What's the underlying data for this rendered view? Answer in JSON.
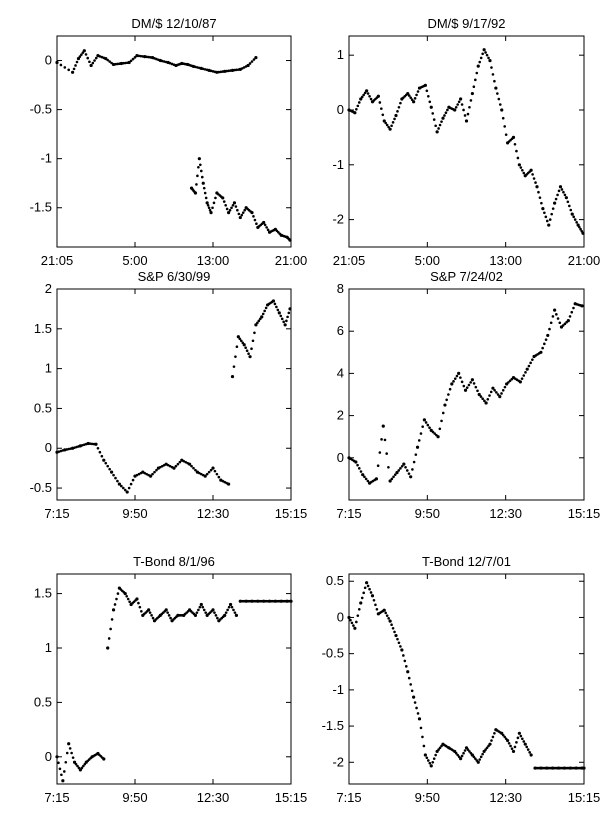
{
  "chart_data": [
    {
      "type": "scatter",
      "title": "DM/$ 12/10/87",
      "xticks": [
        "21:05",
        "5:00",
        "13:00",
        "21:00"
      ],
      "xlim": [
        0,
        24
      ],
      "ylim": [
        -1.9,
        0.25
      ],
      "yticks": [
        0,
        -0.5,
        -1,
        -1.5
      ],
      "ytick_labels": [
        "0",
        "-0.5",
        "-1",
        "-1.5"
      ],
      "segments": [
        {
          "x": [
            0,
            1.6,
            2.2,
            2.8,
            3.5,
            4.2,
            5.0,
            5.8,
            6.6,
            7.4,
            8.2,
            9.0,
            9.8,
            10.6,
            11.4,
            12.2,
            12.8,
            13.4,
            14.0,
            14.8,
            15.6,
            16.4,
            17.2,
            18.0,
            18.8,
            19.6,
            20.4,
            21.0,
            21.6,
            22.2,
            22.8,
            23.4,
            23.8
          ],
          "y": [
            -0.02,
            -0.12,
            0.02,
            0.1,
            -0.05,
            0.05,
            0.02,
            -0.04,
            -0.03,
            -0.02,
            0.05,
            0.04,
            0.03,
            0.0,
            -0.02,
            -0.05,
            -0.03,
            -0.04,
            -0.06,
            -0.08,
            -0.1,
            -0.12,
            -0.11,
            -0.1,
            -0.09,
            -0.05,
            0.03,
            null,
            null,
            null,
            null,
            null,
            null
          ]
        },
        {
          "x": [
            13.8,
            14.2,
            14.6,
            15.0,
            15.4,
            15.8,
            16.4,
            17.0,
            17.6,
            18.2,
            18.8,
            19.4,
            20.0,
            20.6,
            21.2,
            21.8,
            22.4,
            23.0,
            23.6,
            23.9
          ],
          "y": [
            -1.3,
            -1.35,
            -1.0,
            -1.25,
            -1.45,
            -1.55,
            -1.35,
            -1.4,
            -1.55,
            -1.45,
            -1.6,
            -1.5,
            -1.55,
            -1.7,
            -1.65,
            -1.75,
            -1.72,
            -1.78,
            -1.8,
            -1.83
          ]
        }
      ]
    },
    {
      "type": "scatter",
      "title": "DM/$ 9/17/92",
      "xticks": [
        "21:05",
        "5:00",
        "13:00",
        "21:00"
      ],
      "xlim": [
        0,
        24
      ],
      "ylim": [
        -2.5,
        1.35
      ],
      "yticks": [
        1,
        0,
        -1,
        -2
      ],
      "ytick_labels": [
        "1",
        "0",
        "-1",
        "-2"
      ],
      "segments": [
        {
          "x": [
            0,
            0.6,
            1.2,
            1.8,
            2.4,
            3.0,
            3.6,
            4.2,
            4.8,
            5.4,
            6.0,
            6.6,
            7.2,
            7.8,
            8.4,
            9.0,
            9.6,
            10.2,
            10.8,
            11.4,
            12.0,
            12.6,
            13.2,
            13.8,
            14.4,
            15.0,
            15.6,
            16.2,
            16.8,
            17.4,
            18.0,
            18.6,
            19.2,
            19.8,
            20.4,
            21.0,
            21.6,
            22.2,
            22.8,
            23.4,
            23.9
          ],
          "y": [
            0.0,
            -0.05,
            0.2,
            0.35,
            0.15,
            0.25,
            -0.2,
            -0.35,
            -0.1,
            0.2,
            0.3,
            0.15,
            0.4,
            0.45,
            0.05,
            -0.4,
            -0.15,
            0.05,
            0.0,
            0.2,
            -0.2,
            0.3,
            0.8,
            1.1,
            0.9,
            0.4,
            0.0,
            -0.6,
            -0.5,
            -1.0,
            -1.2,
            -1.1,
            -1.4,
            -1.8,
            -2.1,
            -1.7,
            -1.4,
            -1.6,
            -1.9,
            -2.1,
            -2.25
          ]
        }
      ]
    },
    {
      "type": "scatter",
      "title": "S&P 6/30/99",
      "xticks": [
        "7:15",
        "9:50",
        "12:30",
        "15:15"
      ],
      "xlim": [
        0,
        24
      ],
      "ylim": [
        -0.65,
        2.0
      ],
      "yticks": [
        2,
        1.5,
        1,
        0.5,
        0,
        -0.5
      ],
      "ytick_labels": [
        "2",
        "1.5",
        "1",
        "0.5",
        "0",
        "-0.5"
      ],
      "segments": [
        {
          "x": [
            0,
            0.8,
            1.6,
            2.4,
            3.2,
            4.0,
            4.8,
            5.6,
            6.4,
            7.2,
            8.0,
            8.8,
            9.6,
            10.4,
            11.2,
            12.0,
            12.8,
            13.6,
            14.4,
            15.2,
            16.0,
            16.8,
            17.6
          ],
          "y": [
            -0.05,
            -0.02,
            0.0,
            0.03,
            0.06,
            0.05,
            -0.15,
            -0.3,
            -0.45,
            -0.55,
            -0.35,
            -0.3,
            -0.35,
            -0.25,
            -0.2,
            -0.25,
            -0.15,
            -0.2,
            -0.3,
            -0.35,
            -0.25,
            -0.4,
            -0.45
          ]
        },
        {
          "x": [
            18.0,
            18.6,
            19.2,
            19.8,
            20.4,
            21.0,
            21.6,
            22.2,
            22.8,
            23.4,
            23.9
          ],
          "y": [
            0.9,
            1.4,
            1.3,
            1.15,
            1.55,
            1.65,
            1.8,
            1.85,
            1.7,
            1.55,
            1.75
          ]
        }
      ]
    },
    {
      "type": "scatter",
      "title": "S&P 7/24/02",
      "xticks": [
        "7:15",
        "9:50",
        "12:30",
        "15:15"
      ],
      "xlim": [
        0,
        24
      ],
      "ylim": [
        -2.0,
        8.0
      ],
      "yticks": [
        8,
        6,
        4,
        2,
        0
      ],
      "ytick_labels": [
        "8",
        "6",
        "4",
        "2",
        "0"
      ],
      "segments": [
        {
          "x": [
            0,
            0.7,
            1.4,
            2.1,
            2.8,
            3.5,
            4.2,
            4.9,
            5.6,
            6.3,
            7.0,
            7.7,
            8.4,
            9.1,
            9.8,
            10.5,
            11.2,
            11.9,
            12.6,
            13.3,
            14.0,
            14.7,
            15.4,
            16.1,
            16.8,
            17.5,
            18.2,
            18.9,
            19.6,
            20.3,
            21.0,
            21.7,
            22.4,
            23.1,
            23.8
          ],
          "y": [
            0.0,
            -0.2,
            -0.8,
            -1.2,
            -1.0,
            1.5,
            -1.1,
            -0.7,
            -0.3,
            -0.9,
            0.5,
            1.8,
            1.3,
            1.0,
            2.5,
            3.5,
            4.0,
            3.2,
            3.7,
            3.0,
            2.6,
            3.3,
            2.9,
            3.5,
            3.8,
            3.6,
            4.2,
            4.8,
            5.0,
            5.8,
            7.0,
            6.2,
            6.5,
            7.3,
            7.2
          ]
        }
      ]
    },
    {
      "type": "scatter",
      "title": "T-Bond 8/1/96",
      "xticks": [
        "7:15",
        "9:50",
        "12:30",
        "15:15"
      ],
      "xlim": [
        0,
        24
      ],
      "ylim": [
        -0.25,
        1.68
      ],
      "yticks": [
        1.5,
        1,
        0.5,
        0
      ],
      "ytick_labels": [
        "1.5",
        "1",
        "0.5",
        "0"
      ],
      "segments": [
        {
          "x": [
            0,
            0.6,
            1.2,
            1.8,
            2.4,
            3.0,
            3.6,
            4.2,
            4.8
          ],
          "y": [
            0.0,
            -0.22,
            0.12,
            -0.05,
            -0.12,
            -0.05,
            0.0,
            0.03,
            -0.02
          ]
        },
        {
          "x": [
            5.2,
            5.8,
            6.4,
            7.0,
            7.6,
            8.2,
            8.8,
            9.4,
            10.0,
            10.6,
            11.2,
            11.8,
            12.4,
            13.0,
            13.6,
            14.2,
            14.8,
            15.4,
            16.0,
            16.6,
            17.2,
            17.8,
            18.4
          ],
          "y": [
            1.0,
            1.35,
            1.55,
            1.5,
            1.4,
            1.45,
            1.3,
            1.35,
            1.25,
            1.3,
            1.35,
            1.25,
            1.3,
            1.3,
            1.35,
            1.3,
            1.4,
            1.3,
            1.35,
            1.25,
            1.3,
            1.4,
            1.3
          ]
        },
        {
          "x": [
            18.8,
            19.4,
            20.0,
            20.6,
            21.2,
            21.8,
            22.4,
            23.0,
            23.6,
            24.0
          ],
          "y": [
            1.43,
            1.43,
            1.43,
            1.43,
            1.43,
            1.43,
            1.43,
            1.43,
            1.43,
            1.43
          ]
        }
      ]
    },
    {
      "type": "scatter",
      "title": "T-Bond 12/7/01",
      "xticks": [
        "7:15",
        "9:50",
        "12:30",
        "15:15"
      ],
      "xlim": [
        0,
        24
      ],
      "ylim": [
        -2.3,
        0.6
      ],
      "yticks": [
        0.5,
        0,
        -0.5,
        -1,
        -1.5,
        -2
      ],
      "ytick_labels": [
        "0.5",
        "0",
        "-0.5",
        "-1",
        "-1.5",
        "-2"
      ],
      "segments": [
        {
          "x": [
            0,
            0.6,
            1.2,
            1.8,
            2.4,
            3.0,
            3.6,
            4.2,
            4.8,
            5.4,
            6.0,
            6.6,
            7.2,
            7.8,
            8.4,
            9.0,
            9.6,
            10.2,
            10.8,
            11.4,
            12.0,
            12.6,
            13.2,
            13.8,
            14.4,
            15.0,
            15.6,
            16.2,
            16.8,
            17.4,
            18.0,
            18.6
          ],
          "y": [
            0.0,
            -0.15,
            0.2,
            0.48,
            0.3,
            0.05,
            0.1,
            -0.05,
            -0.25,
            -0.45,
            -0.75,
            -1.1,
            -1.4,
            -1.9,
            -2.05,
            -1.85,
            -1.75,
            -1.8,
            -1.85,
            -1.95,
            -1.8,
            -1.9,
            -2.0,
            -1.85,
            -1.75,
            -1.55,
            -1.6,
            -1.7,
            -1.85,
            -1.6,
            -1.75,
            -1.9
          ]
        },
        {
          "x": [
            19.0,
            19.6,
            20.2,
            20.8,
            21.4,
            22.0,
            22.6,
            23.2,
            23.8,
            24.0
          ],
          "y": [
            -2.08,
            -2.08,
            -2.08,
            -2.08,
            -2.08,
            -2.08,
            -2.08,
            -2.08,
            -2.08,
            -2.08
          ]
        }
      ]
    }
  ]
}
